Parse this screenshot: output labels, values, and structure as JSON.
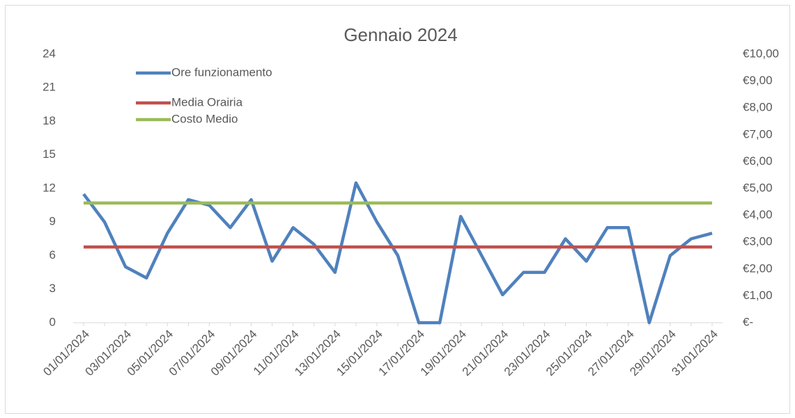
{
  "chart_data": {
    "type": "line",
    "title": "Gennaio 2024",
    "categories": [
      "01/01/2024",
      null,
      "03/01/2024",
      null,
      "05/01/2024",
      null,
      "07/01/2024",
      null,
      "09/01/2024",
      null,
      "11/01/2024",
      null,
      "13/01/2024",
      null,
      "15/01/2024",
      null,
      "17/01/2024",
      null,
      "19/01/2024",
      null,
      "21/01/2024",
      null,
      "23/01/2024",
      null,
      "25/01/2024",
      null,
      "27/01/2024",
      null,
      "29/01/2024",
      null,
      "31/01/2024"
    ],
    "series": [
      {
        "name": "Ore funzionamento",
        "color": "#4f81bd",
        "values": [
          11.5,
          9,
          5,
          4,
          8,
          11,
          10.5,
          8.5,
          11,
          5.5,
          8.5,
          7,
          4.5,
          12.5,
          9,
          6,
          0,
          0,
          9.5,
          6,
          2.5,
          4.5,
          4.5,
          7.5,
          5.5,
          8.5,
          8.5,
          0,
          6,
          7.5,
          8
        ]
      },
      {
        "name": "Media Orairia",
        "color": "#c0504d",
        "values": [
          6.77,
          6.77,
          6.77,
          6.77,
          6.77,
          6.77,
          6.77,
          6.77,
          6.77,
          6.77,
          6.77,
          6.77,
          6.77,
          6.77,
          6.77,
          6.77,
          6.77,
          6.77,
          6.77,
          6.77,
          6.77,
          6.77,
          6.77,
          6.77,
          6.77,
          6.77,
          6.77,
          6.77,
          6.77,
          6.77,
          6.77
        ]
      },
      {
        "name": "Costo Medio",
        "color": "#9bbb59",
        "axis": "y2",
        "values": [
          4.46,
          4.46,
          4.46,
          4.46,
          4.46,
          4.46,
          4.46,
          4.46,
          4.46,
          4.46,
          4.46,
          4.46,
          4.46,
          4.46,
          4.46,
          4.46,
          4.46,
          4.46,
          4.46,
          4.46,
          4.46,
          4.46,
          4.46,
          4.46,
          4.46,
          4.46,
          4.46,
          4.46,
          4.46,
          4.46,
          4.46
        ]
      }
    ],
    "ylim": [
      0,
      24
    ],
    "yticks": [
      0,
      3,
      6,
      9,
      12,
      15,
      18,
      21,
      24
    ],
    "y2lim": [
      0,
      10
    ],
    "y2ticks": [
      {
        "value": 0,
        "label": "€-"
      },
      {
        "value": 1,
        "label": "€1,00"
      },
      {
        "value": 2,
        "label": "€2,00"
      },
      {
        "value": 3,
        "label": "€3,00"
      },
      {
        "value": 4,
        "label": "€4,00"
      },
      {
        "value": 5,
        "label": "€5,00"
      },
      {
        "value": 6,
        "label": "€6,00"
      },
      {
        "value": 7,
        "label": "€7,00"
      },
      {
        "value": 8,
        "label": "€8,00"
      },
      {
        "value": 9,
        "label": "€9,00"
      },
      {
        "value": 10,
        "label": "€10,00"
      }
    ],
    "grid": false,
    "legend": "upper left"
  }
}
